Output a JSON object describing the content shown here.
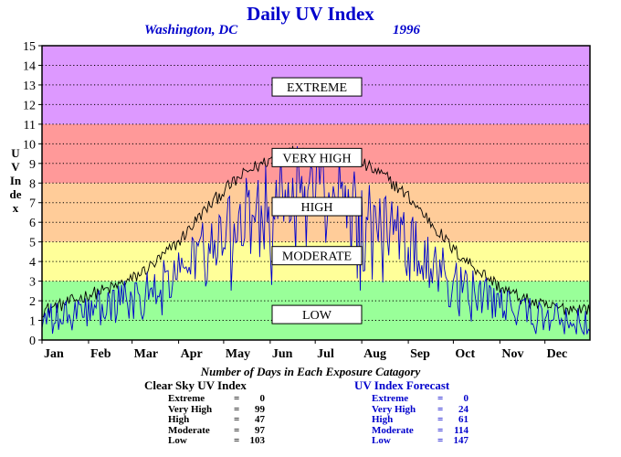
{
  "title": "Daily UV Index",
  "subtitle_location": "Washington, DC",
  "subtitle_year": "1996",
  "colors": {
    "low": "#99ff99",
    "moderate": "#ffff99",
    "high": "#ffcc99",
    "very_high": "#ff9999",
    "extreme": "#dd99ff",
    "clear_sky_line": "#000000",
    "forecast_line": "#0000cc",
    "heading": "#0000cc"
  },
  "chart_data": {
    "type": "line",
    "title": "Daily UV Index",
    "ylabel": "UV Index",
    "ylim": [
      0,
      15
    ],
    "yticks": [
      "0",
      "1",
      "2",
      "3",
      "4",
      "5",
      "6",
      "7",
      "8",
      "9",
      "10",
      "11",
      "12",
      "13",
      "14",
      "15"
    ],
    "xlim": [
      1,
      366
    ],
    "xlabels": [
      "Jan",
      "Feb",
      "Mar",
      "Apr",
      "May",
      "Jun",
      "Jul",
      "Aug",
      "Sep",
      "Oct",
      "Nov",
      "Dec"
    ],
    "xlabel_days": [
      1,
      32,
      61,
      92,
      122,
      153,
      183,
      214,
      245,
      275,
      306,
      336
    ],
    "gridlines_horizontal": true,
    "bands": [
      {
        "label": "LOW",
        "from": 0,
        "to": 3,
        "color": "#99ff99",
        "label_y": 1.3
      },
      {
        "label": "MODERATE",
        "from": 3,
        "to": 5,
        "color": "#ffff99",
        "label_y": 4.3
      },
      {
        "label": "HIGH",
        "from": 5,
        "to": 8,
        "color": "#ffcc99",
        "label_y": 6.8
      },
      {
        "label": "VERY HIGH",
        "from": 8,
        "to": 11,
        "color": "#ff9999",
        "label_y": 9.3
      },
      {
        "label": "EXTREME",
        "from": 11,
        "to": 15,
        "color": "#dd99ff",
        "label_y": 12.9
      }
    ],
    "series": [
      {
        "key": "clear_sky",
        "color": "#000000",
        "days": [
          1,
          15,
          32,
          46,
          61,
          76,
          92,
          107,
          122,
          138,
          153,
          168,
          183,
          199,
          214,
          230,
          245,
          260,
          275,
          291,
          306,
          321,
          336,
          351,
          366
        ],
        "values": [
          1.5,
          1.8,
          2.3,
          2.6,
          3.1,
          3.9,
          5.0,
          6.4,
          7.6,
          8.6,
          9.2,
          9.6,
          9.6,
          9.4,
          9.0,
          8.3,
          7.3,
          6.0,
          4.6,
          3.6,
          2.7,
          2.1,
          1.7,
          1.6,
          1.6
        ],
        "noise": 0.35
      },
      {
        "key": "forecast",
        "color": "#0000cc",
        "days": [
          1,
          15,
          32,
          46,
          61,
          76,
          92,
          107,
          122,
          138,
          153,
          168,
          183,
          199,
          214,
          230,
          245,
          260,
          275,
          291,
          306,
          321,
          336,
          351,
          366
        ],
        "values": [
          1.0,
          1.2,
          1.5,
          1.9,
          2.2,
          2.8,
          3.5,
          4.8,
          5.8,
          6.8,
          7.8,
          8.2,
          8.3,
          8.0,
          7.0,
          6.0,
          5.2,
          4.2,
          3.2,
          2.4,
          1.9,
          1.5,
          1.2,
          1.0,
          1.1
        ],
        "noise": 1.2
      }
    ]
  },
  "summary": {
    "title": "Number of Days in Each Exposure Catagory",
    "clear_sky": {
      "title": "Clear Sky UV Index",
      "rows": [
        {
          "label": "Extreme",
          "eq": "=",
          "value": "0"
        },
        {
          "label": "Very High",
          "eq": "=",
          "value": "99"
        },
        {
          "label": "High",
          "eq": "=",
          "value": "47"
        },
        {
          "label": "Moderate",
          "eq": "=",
          "value": "97"
        },
        {
          "label": "Low",
          "eq": "=",
          "value": "103"
        }
      ]
    },
    "forecast": {
      "title": "UV Index Forecast",
      "rows": [
        {
          "label": "Extreme",
          "eq": "=",
          "value": "0"
        },
        {
          "label": "Very High",
          "eq": "=",
          "value": "24"
        },
        {
          "label": "High",
          "eq": "=",
          "value": "61"
        },
        {
          "label": "Moderate",
          "eq": "=",
          "value": "114"
        },
        {
          "label": "Low",
          "eq": "=",
          "value": "147"
        }
      ]
    }
  }
}
